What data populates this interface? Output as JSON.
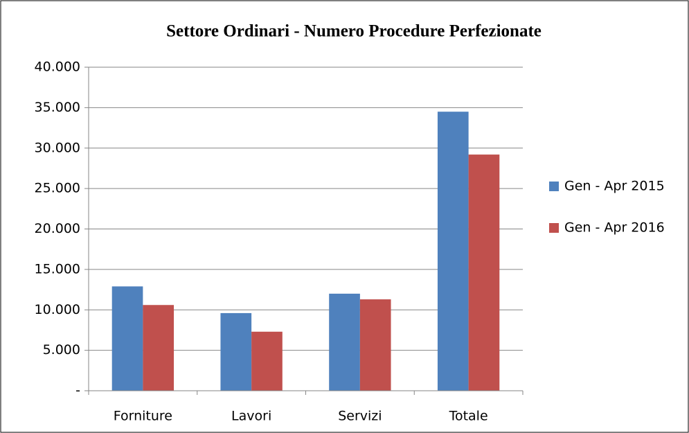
{
  "chart_data": {
    "type": "bar",
    "title": "Settore Ordinari - Numero Procedure Perfezionate",
    "categories": [
      "Forniture",
      "Lavori",
      "Servizi",
      "Totale"
    ],
    "series": [
      {
        "name": "Gen - Apr 2015",
        "color": "#4f81bd",
        "values": [
          12900,
          9600,
          12000,
          34500
        ]
      },
      {
        "name": "Gen - Apr 2016",
        "color": "#c0504d",
        "values": [
          10600,
          7300,
          11300,
          29200
        ]
      }
    ],
    "ylim": [
      0,
      40000
    ],
    "yticks": [
      {
        "value": 0,
        "label": "-"
      },
      {
        "value": 5000,
        "label": "5.000"
      },
      {
        "value": 10000,
        "label": "10.000"
      },
      {
        "value": 15000,
        "label": "15.000"
      },
      {
        "value": 20000,
        "label": "20.000"
      },
      {
        "value": 25000,
        "label": "25.000"
      },
      {
        "value": 30000,
        "label": "30.000"
      },
      {
        "value": 35000,
        "label": "35.000"
      },
      {
        "value": 40000,
        "label": "40.000"
      }
    ],
    "grid": true,
    "legend": "right"
  }
}
